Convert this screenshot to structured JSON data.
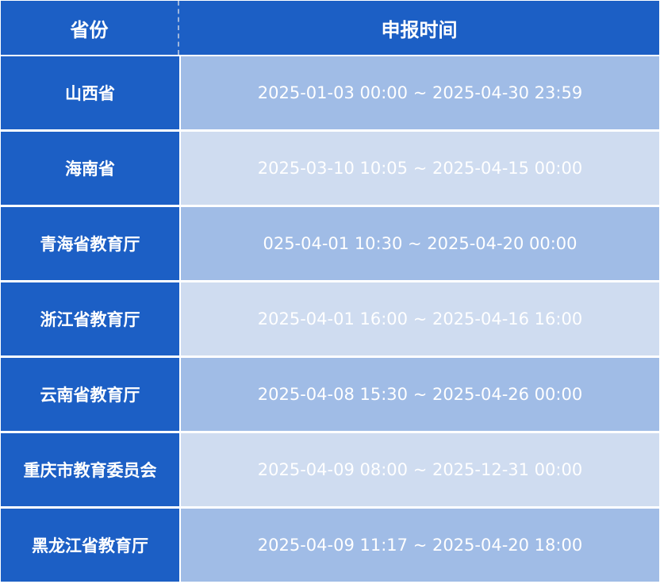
{
  "headers": {
    "province": "省份",
    "time": "申报时间"
  },
  "rows": [
    {
      "province": "山西省",
      "time": "2025-01-03 00:00 ~ 2025-04-30 23:59"
    },
    {
      "province": "海南省",
      "time": "2025-03-10 10:05 ~ 2025-04-15 00:00"
    },
    {
      "province": "青海省教育厅",
      "time": "025-04-01 10:30 ~ 2025-04-20 00:00"
    },
    {
      "province": "浙江省教育厅",
      "time": "2025-04-01 16:00 ~ 2025-04-16 16:00"
    },
    {
      "province": "云南省教育厅",
      "time": "2025-04-08 15:30 ~ 2025-04-26 00:00"
    },
    {
      "province": "重庆市教育委员会",
      "time": "2025-04-09 08:00 ~ 2025-12-31 00:00"
    },
    {
      "province": "黑龙江省教育厅",
      "time": "2025-04-09 11:17 ~ 2025-04-20 18:00"
    }
  ],
  "colors": {
    "header": "#1c5fc5",
    "row_odd": "#a0bce6",
    "row_even": "#cfdcf0"
  }
}
